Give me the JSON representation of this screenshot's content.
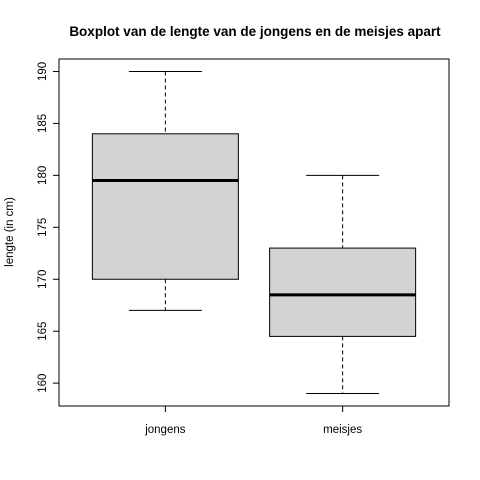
{
  "chart_data": {
    "type": "boxplot",
    "title": "Boxplot van de lengte van de jongens en de meisjes apart",
    "xlabel": "",
    "ylabel": "lengte (in cm)",
    "ylim": [
      157.8,
      191.2
    ],
    "yticks": [
      160,
      165,
      170,
      175,
      180,
      185,
      190
    ],
    "grid": false,
    "categories": [
      "jongens",
      "meisjes"
    ],
    "boxes": [
      {
        "category": "jongens",
        "min": 167,
        "q1": 170,
        "median": 179.5,
        "q3": 184,
        "max": 190
      },
      {
        "category": "meisjes",
        "min": 159,
        "q1": 164.5,
        "median": 168.5,
        "q3": 173,
        "max": 180
      }
    ],
    "colors": {
      "box_fill": "#d3d3d3",
      "line": "#000000"
    }
  }
}
